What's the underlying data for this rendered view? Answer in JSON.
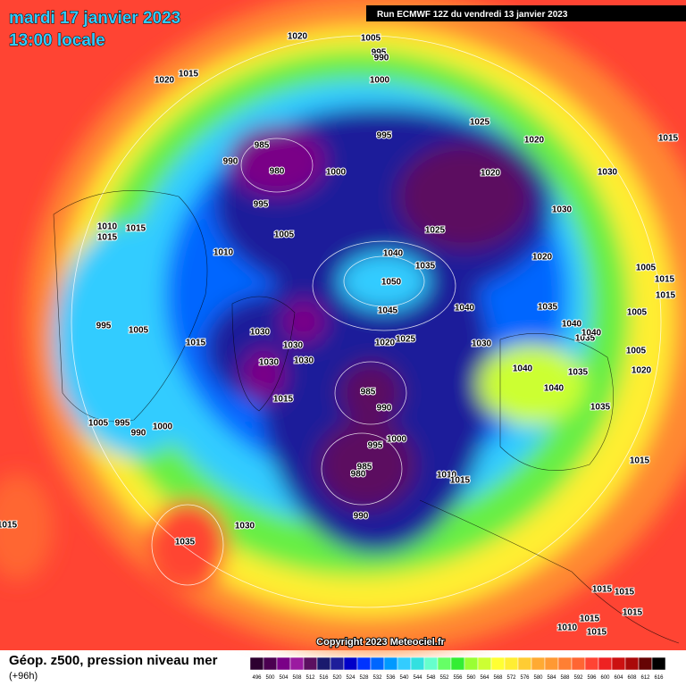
{
  "header": {
    "title": "mardi 17 janvier 2023",
    "time": "13:00 locale",
    "run": "Run ECMWF 12Z du vendredi 13 janvier 2023"
  },
  "copyright": "Copyright 2023 Meteociel.fr",
  "legend": {
    "title": "Géop. z500, pression niveau mer",
    "lead": "(+96h)",
    "scale": [
      496,
      500,
      504,
      508,
      512,
      516,
      520,
      524,
      528,
      532,
      536,
      540,
      544,
      548,
      552,
      556,
      560,
      564,
      568,
      572,
      576,
      580,
      584,
      588,
      592,
      596,
      600,
      604,
      608,
      612,
      616
    ],
    "colors": [
      "#2d0030",
      "#4b0050",
      "#7a0087",
      "#9b1aa0",
      "#5c1060",
      "#1a1a6e",
      "#1e1e9a",
      "#0000c8",
      "#0033ff",
      "#0066ff",
      "#0099ff",
      "#33ccff",
      "#33e0e0",
      "#66ffcc",
      "#66ff66",
      "#33ee33",
      "#99ff33",
      "#ccff33",
      "#ffff33",
      "#ffee33",
      "#ffcc33",
      "#ffaa33",
      "#ff9933",
      "#ff7f33",
      "#ff6633",
      "#ff4433",
      "#ee2222",
      "#cc1111",
      "#aa0a0a",
      "#660404",
      "#000000"
    ]
  },
  "isobars": [
    1020,
    1005,
    995,
    990,
    1000,
    1020,
    1015,
    1025,
    995,
    985,
    980,
    990,
    1000,
    1020,
    1015,
    1030,
    1020,
    995,
    1030,
    1005,
    1025,
    1010,
    1015,
    1015,
    1010,
    1040,
    1035,
    1020,
    1050,
    1005,
    1015,
    1015,
    1045,
    1040,
    1035,
    1005,
    995,
    1005,
    1030,
    1020,
    1025,
    1030,
    1040,
    1035,
    1040,
    1015,
    1030,
    1030,
    1030,
    1005,
    1040,
    1035,
    1020,
    985,
    1015,
    1040,
    990,
    1035,
    1005,
    995,
    1000,
    990,
    1000,
    995,
    985,
    980,
    1015,
    1010,
    1015,
    1015,
    1030,
    1035,
    990,
    1015,
    1015,
    1015,
    1015,
    1010,
    1015
  ]
}
